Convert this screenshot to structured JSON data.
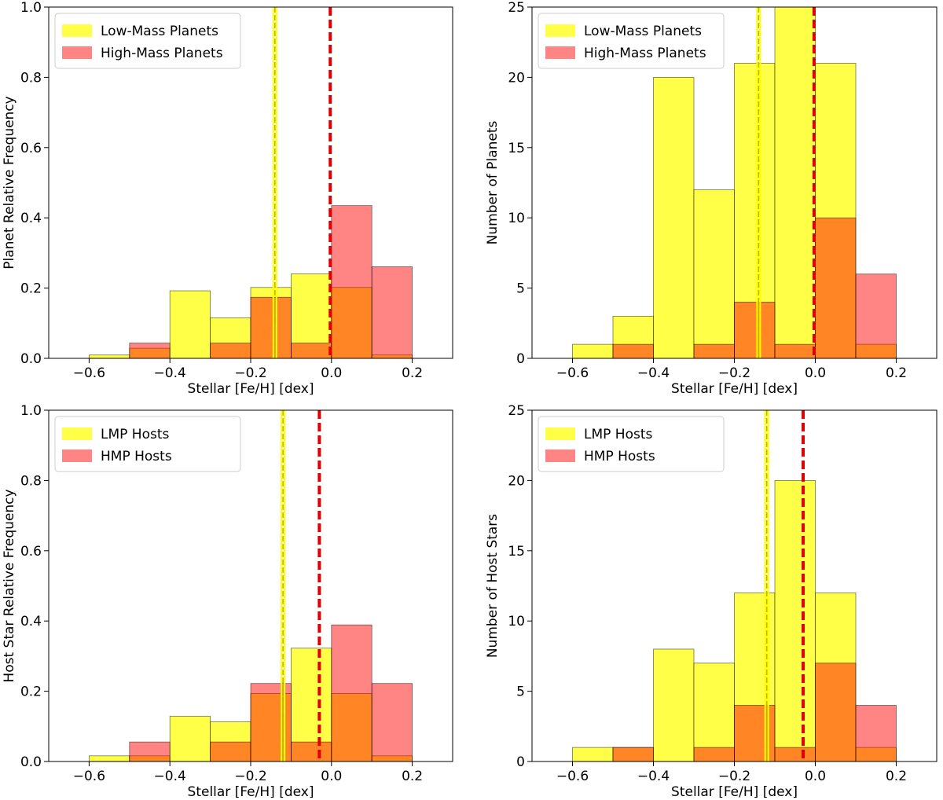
{
  "colors": {
    "low": "#ffff00",
    "high": "#ff0000",
    "overlap": "#ff8c00",
    "low_median": "#b8b800",
    "high_median": "#dd0000"
  },
  "chart_data": [
    {
      "id": "tl",
      "type": "bar",
      "xlabel": "Stellar [Fe/H] [dex]",
      "ylabel": "Planet Relative Frequency",
      "xlim": [
        -0.7,
        0.3
      ],
      "ylim": [
        0,
        1.0
      ],
      "xticks": [
        -0.6,
        -0.4,
        -0.2,
        0.0,
        0.2
      ],
      "xtick_labels": [
        "−0.6",
        "−0.4",
        "−0.2",
        "0.0",
        "0.2"
      ],
      "yticks": [
        0,
        0.2,
        0.4,
        0.6,
        0.8,
        1.0
      ],
      "ytick_labels": [
        "0.0",
        "0.2",
        "0.4",
        "0.6",
        "0.8",
        "1.0"
      ],
      "bin_edges": [
        -0.6,
        -0.5,
        -0.4,
        -0.3,
        -0.2,
        -0.1,
        0.0,
        0.1,
        0.2
      ],
      "legend_position": "upper-left",
      "series": [
        {
          "name": "Low-Mass Planets",
          "values": [
            0.0096,
            0.0288,
            0.1923,
            0.1154,
            0.2019,
            0.2404,
            0.2019,
            0.0096
          ],
          "median": -0.14
        },
        {
          "name": "High-Mass Planets",
          "values": [
            0.0,
            0.0435,
            0.0,
            0.0435,
            0.1739,
            0.0435,
            0.4348,
            0.2609
          ],
          "median": -0.003
        }
      ]
    },
    {
      "id": "tr",
      "type": "bar",
      "xlabel": "Stellar [Fe/H] [dex]",
      "ylabel": "Number of Planets",
      "xlim": [
        -0.7,
        0.3
      ],
      "ylim": [
        0,
        25
      ],
      "xticks": [
        -0.6,
        -0.4,
        -0.2,
        0.0,
        0.2
      ],
      "xtick_labels": [
        "−0.6",
        "−0.4",
        "−0.2",
        "0.0",
        "0.2"
      ],
      "yticks": [
        0,
        5,
        10,
        15,
        20,
        25
      ],
      "ytick_labels": [
        "0",
        "5",
        "10",
        "15",
        "20",
        "25"
      ],
      "bin_edges": [
        -0.6,
        -0.5,
        -0.4,
        -0.3,
        -0.2,
        -0.1,
        0.0,
        0.1,
        0.2
      ],
      "legend_position": "upper-left",
      "series": [
        {
          "name": "Low-Mass Planets",
          "values": [
            1,
            3,
            20,
            12,
            21,
            25,
            21,
            1
          ],
          "median": -0.14
        },
        {
          "name": "High-Mass Planets",
          "values": [
            0,
            1,
            0,
            1,
            4,
            1,
            10,
            6
          ],
          "median": -0.003
        }
      ]
    },
    {
      "id": "bl",
      "type": "bar",
      "xlabel": "Stellar [Fe/H] [dex]",
      "ylabel": "Host Star Relative Frequency",
      "xlim": [
        -0.7,
        0.3
      ],
      "ylim": [
        0,
        1.0
      ],
      "xticks": [
        -0.6,
        -0.4,
        -0.2,
        0.0,
        0.2
      ],
      "xtick_labels": [
        "−0.6",
        "−0.4",
        "−0.2",
        "0.0",
        "0.2"
      ],
      "yticks": [
        0,
        0.2,
        0.4,
        0.6,
        0.8,
        1.0
      ],
      "ytick_labels": [
        "0.0",
        "0.2",
        "0.4",
        "0.6",
        "0.8",
        "1.0"
      ],
      "bin_edges": [
        -0.6,
        -0.5,
        -0.4,
        -0.3,
        -0.2,
        -0.1,
        0.0,
        0.1,
        0.2
      ],
      "legend_position": "upper-left",
      "series": [
        {
          "name": "LMP Hosts",
          "values": [
            0.0161,
            0.0161,
            0.129,
            0.1129,
            0.1935,
            0.3226,
            0.1935,
            0.0161
          ],
          "median": -0.12
        },
        {
          "name": "HMP Hosts",
          "values": [
            0.0,
            0.0556,
            0.0,
            0.0556,
            0.2222,
            0.0556,
            0.3889,
            0.2222
          ],
          "median": -0.03
        }
      ]
    },
    {
      "id": "br",
      "type": "bar",
      "xlabel": "Stellar [Fe/H] [dex]",
      "ylabel": "Number of Host Stars",
      "xlim": [
        -0.7,
        0.3
      ],
      "ylim": [
        0,
        25
      ],
      "xticks": [
        -0.6,
        -0.4,
        -0.2,
        0.0,
        0.2
      ],
      "xtick_labels": [
        "−0.6",
        "−0.4",
        "−0.2",
        "0.0",
        "0.2"
      ],
      "yticks": [
        0,
        5,
        10,
        15,
        20,
        25
      ],
      "ytick_labels": [
        "0",
        "5",
        "10",
        "15",
        "20",
        "25"
      ],
      "bin_edges": [
        -0.6,
        -0.5,
        -0.4,
        -0.3,
        -0.2,
        -0.1,
        0.0,
        0.1,
        0.2
      ],
      "legend_position": "upper-left",
      "series": [
        {
          "name": "LMP Hosts",
          "values": [
            1,
            1,
            8,
            7,
            12,
            20,
            12,
            1
          ],
          "median": -0.12
        },
        {
          "name": "HMP Hosts",
          "values": [
            0,
            1,
            0,
            1,
            4,
            1,
            7,
            4
          ],
          "median": -0.03
        }
      ]
    }
  ]
}
